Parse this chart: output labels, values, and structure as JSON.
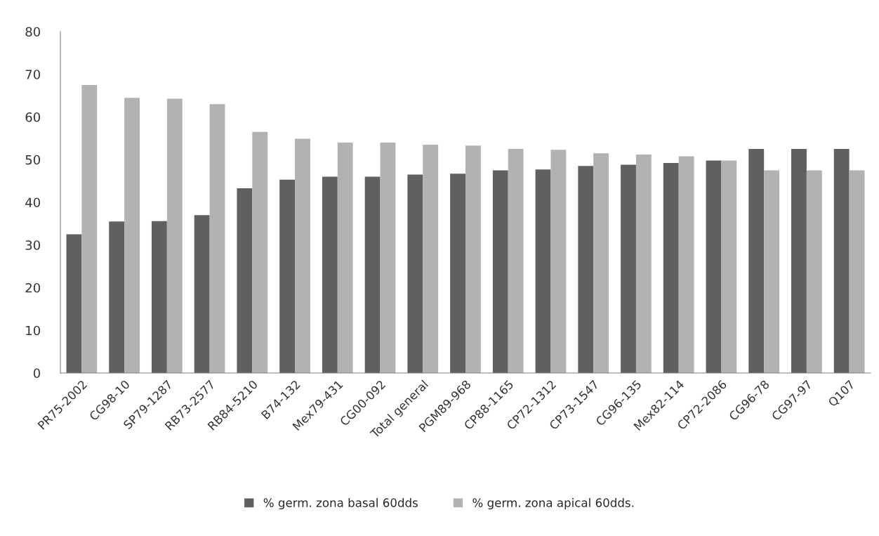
{
  "chart_data": {
    "type": "bar",
    "categories": [
      "PR75-2002",
      "CG98-10",
      "SP79-1287",
      "RB73-2577",
      "RB84-5210",
      "B74-132",
      "Mex79-431",
      "CG00-092",
      "Total general",
      "PGM89-968",
      "CP88-1165",
      "CP72-1312",
      "CP73-1547",
      "CG96-135",
      "Mex82-114",
      "CP72-2086",
      "CG96-78",
      "CG97-97",
      "Q107"
    ],
    "series": [
      {
        "name": "% germ. zona basal 60dds",
        "color": "#606060",
        "values": [
          32.5,
          35.5,
          35.6,
          37,
          43.3,
          45.3,
          46,
          46,
          46.5,
          46.7,
          47.5,
          47.7,
          48.5,
          48.8,
          49.2,
          49.8,
          52.5,
          52.5,
          52.5
        ]
      },
      {
        "name": "% germ. zona apical 60dds.",
        "color": "#b2b2b2",
        "values": [
          67.5,
          64.5,
          64.3,
          63,
          56.5,
          54.9,
          54,
          54,
          53.5,
          53.3,
          52.5,
          52.3,
          51.5,
          51.2,
          50.8,
          49.8,
          47.5,
          47.5,
          47.5
        ]
      }
    ],
    "ylim": [
      0,
      80
    ],
    "yticks": [
      0,
      10,
      20,
      30,
      40,
      50,
      60,
      70,
      80
    ],
    "grid": false,
    "legend": "bottom"
  }
}
